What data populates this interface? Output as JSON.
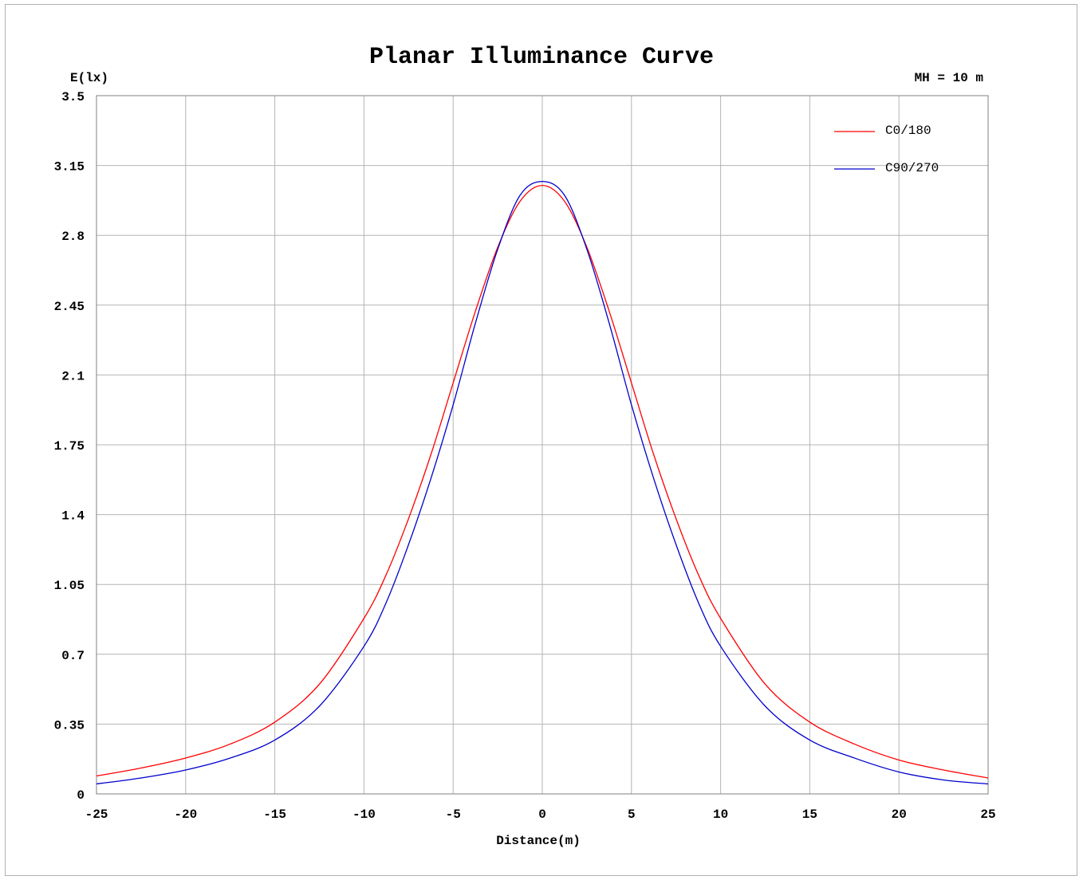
{
  "chart_data": {
    "type": "line",
    "title": "Planar Illuminance Curve",
    "annotation": "MH = 10 m",
    "xlabel": "Distance(m)",
    "ylabel": "E(lx)",
    "xlim": [
      -25,
      25
    ],
    "ylim": [
      0,
      3.5
    ],
    "xticks": [
      "-25",
      "-20",
      "-15",
      "-10",
      "-5",
      "0",
      "5",
      "10",
      "15",
      "20",
      "25"
    ],
    "yticks": [
      "0",
      "0.35",
      "0.7",
      "1.05",
      "1.4",
      "1.75",
      "2.1",
      "2.45",
      "2.8",
      "3.15",
      "3.5"
    ],
    "grid": true,
    "legend_position": "top-right",
    "x": [
      -25,
      -22.5,
      -20,
      -17.5,
      -15,
      -12.5,
      -10,
      -8.75,
      -7.5,
      -6.25,
      -5,
      -3.75,
      -2.5,
      -1.25,
      0,
      1.25,
      2.5,
      3.75,
      5,
      6.25,
      7.5,
      8.75,
      10,
      12.5,
      15,
      17.5,
      20,
      22.5,
      25
    ],
    "series": [
      {
        "name": "C0/180",
        "color": "#ff0000",
        "values": [
          0.09,
          0.13,
          0.18,
          0.25,
          0.36,
          0.55,
          0.88,
          1.1,
          1.38,
          1.7,
          2.06,
          2.42,
          2.74,
          2.97,
          3.05,
          2.97,
          2.74,
          2.42,
          2.06,
          1.7,
          1.38,
          1.1,
          0.88,
          0.55,
          0.36,
          0.25,
          0.17,
          0.12,
          0.08
        ]
      },
      {
        "name": "C90/270",
        "color": "#0000cc",
        "values": [
          0.05,
          0.08,
          0.12,
          0.18,
          0.27,
          0.44,
          0.74,
          0.96,
          1.25,
          1.58,
          1.95,
          2.36,
          2.73,
          3.0,
          3.07,
          3.0,
          2.73,
          2.36,
          1.95,
          1.58,
          1.25,
          0.96,
          0.74,
          0.44,
          0.27,
          0.18,
          0.11,
          0.07,
          0.05
        ]
      }
    ]
  }
}
